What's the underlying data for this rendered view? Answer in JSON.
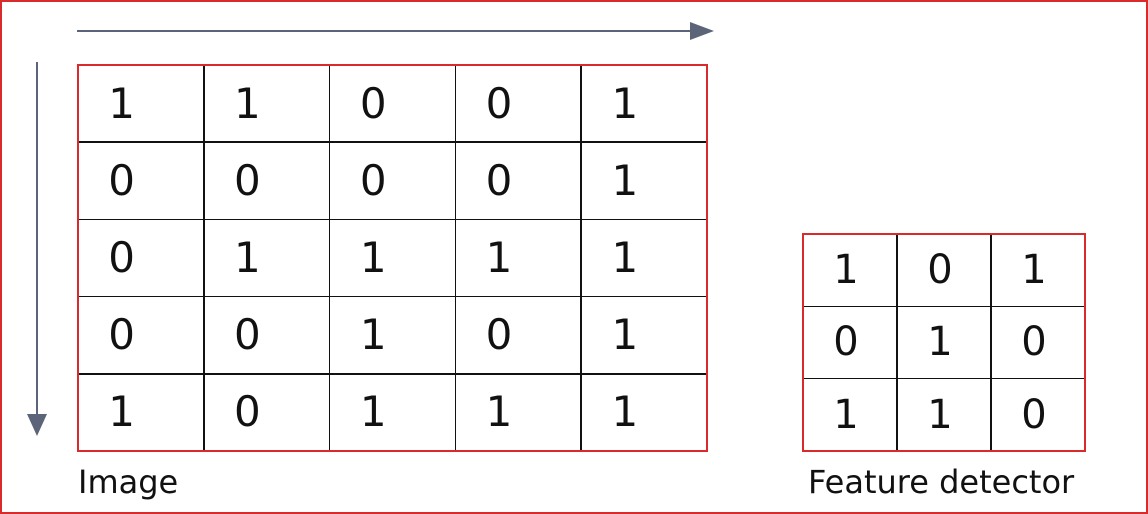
{
  "image": {
    "caption": "Image",
    "rows": [
      [
        "1",
        "1",
        "0",
        "0",
        "1"
      ],
      [
        "0",
        "0",
        "0",
        "0",
        "1"
      ],
      [
        "0",
        "1",
        "1",
        "1",
        "1"
      ],
      [
        "0",
        "0",
        "1",
        "0",
        "1"
      ],
      [
        "1",
        "0",
        "1",
        "1",
        "1"
      ]
    ]
  },
  "feature_detector": {
    "caption": "Feature detector",
    "rows": [
      [
        "1",
        "0",
        "1"
      ],
      [
        "0",
        "1",
        "0"
      ],
      [
        "1",
        "1",
        "0"
      ]
    ]
  },
  "colors": {
    "border": "#d92b2b",
    "arrow": "#5b6478",
    "grid_line": "#111111"
  }
}
